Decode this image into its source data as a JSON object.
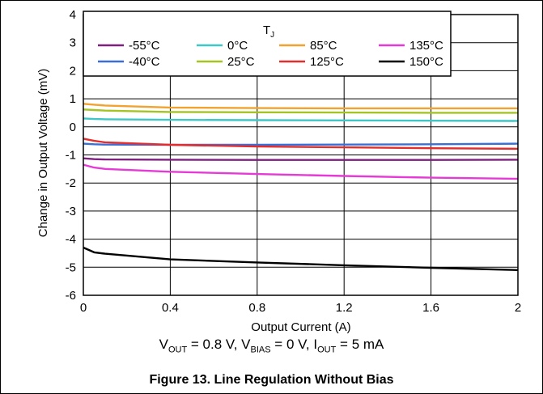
{
  "chart_data": {
    "type": "line",
    "xlabel": "Output Current (A)",
    "ylabel": "Change in Output Voltage (mV)",
    "xlim": [
      0,
      2
    ],
    "ylim": [
      -6,
      4
    ],
    "x_ticks": [
      "0",
      "0.4",
      "0.8",
      "1.2",
      "1.6",
      "2"
    ],
    "y_ticks": [
      "4",
      "3",
      "2",
      "1",
      "0",
      "-1",
      "-2",
      "-3",
      "-4",
      "-5",
      "-6"
    ],
    "grid": true,
    "legend_title": "T",
    "legend_title_sub": "J",
    "legend_placement": "top-right",
    "series": [
      {
        "name": "-55°C",
        "color": "#7f1f7f",
        "x": [
          0,
          0.05,
          0.1,
          0.4,
          0.8,
          1.2,
          1.6,
          2
        ],
        "y": [
          -1.12,
          -1.15,
          -1.16,
          -1.17,
          -1.18,
          -1.18,
          -1.18,
          -1.17
        ]
      },
      {
        "name": "-40°C",
        "color": "#3a6fd8",
        "x": [
          0,
          0.05,
          0.1,
          0.4,
          0.8,
          1.2,
          1.6,
          2
        ],
        "y": [
          -0.6,
          -0.62,
          -0.63,
          -0.64,
          -0.64,
          -0.63,
          -0.62,
          -0.6
        ]
      },
      {
        "name": "0°C",
        "color": "#3fc6c6",
        "x": [
          0,
          0.05,
          0.1,
          0.4,
          0.8,
          1.2,
          1.6,
          2
        ],
        "y": [
          0.3,
          0.28,
          0.27,
          0.25,
          0.24,
          0.23,
          0.22,
          0.21
        ]
      },
      {
        "name": "25°C",
        "color": "#a5c423",
        "x": [
          0,
          0.05,
          0.1,
          0.4,
          0.8,
          1.2,
          1.6,
          2
        ],
        "y": [
          0.62,
          0.6,
          0.58,
          0.53,
          0.52,
          0.51,
          0.5,
          0.5
        ]
      },
      {
        "name": "85°C",
        "color": "#f2a22e",
        "x": [
          0,
          0.05,
          0.1,
          0.4,
          0.8,
          1.2,
          1.6,
          2
        ],
        "y": [
          0.82,
          0.79,
          0.76,
          0.69,
          0.67,
          0.66,
          0.66,
          0.66
        ]
      },
      {
        "name": "125°C",
        "color": "#e22e2e",
        "x": [
          0,
          0.05,
          0.1,
          0.4,
          0.8,
          1.2,
          1.6,
          2
        ],
        "y": [
          -0.42,
          -0.5,
          -0.55,
          -0.64,
          -0.7,
          -0.73,
          -0.76,
          -0.78
        ]
      },
      {
        "name": "135°C",
        "color": "#e53ad6",
        "x": [
          0,
          0.05,
          0.1,
          0.4,
          0.8,
          1.2,
          1.6,
          2
        ],
        "y": [
          -1.35,
          -1.45,
          -1.5,
          -1.6,
          -1.68,
          -1.75,
          -1.81,
          -1.85
        ]
      },
      {
        "name": "150°C",
        "color": "#000000",
        "x": [
          0,
          0.05,
          0.1,
          0.4,
          0.8,
          1.2,
          1.6,
          2
        ],
        "y": [
          -4.3,
          -4.47,
          -4.52,
          -4.72,
          -4.83,
          -4.93,
          -5.02,
          -5.1
        ]
      }
    ]
  },
  "conditions": {
    "v_out_sym": "V",
    "v_out_sub": "OUT",
    "v_out_val": " = 0.8 V, ",
    "v_bias_sym": "V",
    "v_bias_sub": "BIAS",
    "v_bias_val": " = 0 V, ",
    "i_out_sym": "I",
    "i_out_sub": "OUT",
    "i_out_val": " = 5 mA"
  },
  "figure_title": "Figure 13. Line Regulation Without Bias"
}
